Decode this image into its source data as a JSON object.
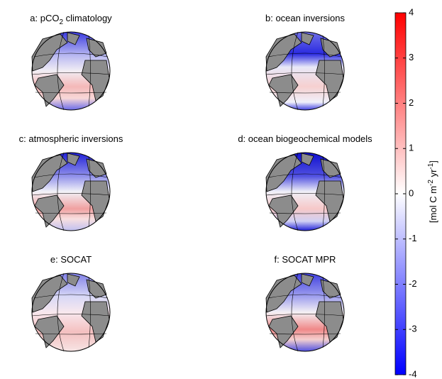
{
  "panels": [
    {
      "label": "a: pCO",
      "sub": "2",
      "rest": " climatology"
    },
    {
      "label": "b: ocean inversions"
    },
    {
      "label": "c: atmospheric inversions"
    },
    {
      "label": "d: ocean biogeochemical models"
    },
    {
      "label": "e: SOCAT"
    },
    {
      "label": "f: SOCAT MPR"
    }
  ],
  "colorbar": {
    "label": [
      "[mol C m",
      "-2",
      " yr",
      "-1",
      "]"
    ],
    "lim": [
      -4,
      4
    ],
    "ticks": [
      -4,
      -3,
      -2,
      -1,
      0,
      1,
      2,
      3,
      4
    ]
  }
}
